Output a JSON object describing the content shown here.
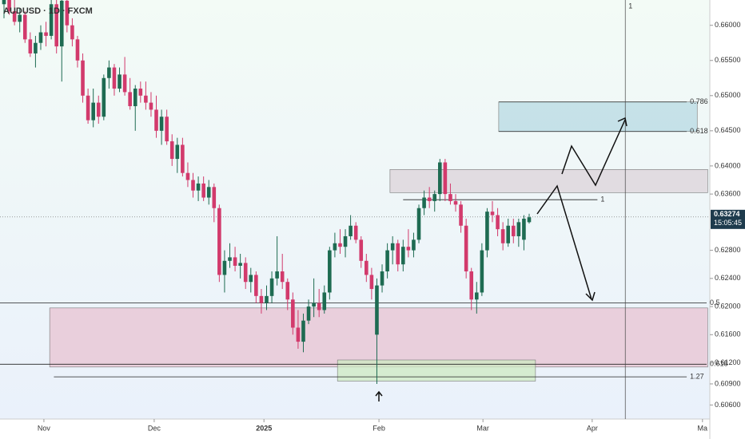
{
  "chart_data": {
    "type": "candlestick",
    "title": "AUDUSD · 1D · FXCM",
    "up_color": "#1e6b52",
    "down_color": "#d23a6c",
    "ohlc": [
      [
        0.663,
        0.665,
        0.661,
        0.664
      ],
      [
        0.664,
        0.6655,
        0.6615,
        0.662
      ],
      [
        0.662,
        0.664,
        0.66,
        0.6605
      ],
      [
        0.6605,
        0.6625,
        0.659,
        0.6615
      ],
      [
        0.6615,
        0.662,
        0.6575,
        0.658
      ],
      [
        0.658,
        0.659,
        0.6555,
        0.656
      ],
      [
        0.656,
        0.6585,
        0.654,
        0.6575
      ],
      [
        0.6575,
        0.66,
        0.6565,
        0.659
      ],
      [
        0.659,
        0.6605,
        0.657,
        0.6585
      ],
      [
        0.6585,
        0.664,
        0.658,
        0.663
      ],
      [
        0.663,
        0.664,
        0.656,
        0.657
      ],
      [
        0.657,
        0.664,
        0.652,
        0.6635
      ],
      [
        0.6635,
        0.664,
        0.659,
        0.66
      ],
      [
        0.66,
        0.661,
        0.657,
        0.658
      ],
      [
        0.658,
        0.6585,
        0.654,
        0.655
      ],
      [
        0.655,
        0.656,
        0.649,
        0.65
      ],
      [
        0.65,
        0.651,
        0.646,
        0.6465
      ],
      [
        0.6465,
        0.651,
        0.6455,
        0.649
      ],
      [
        0.649,
        0.65,
        0.646,
        0.647
      ],
      [
        0.647,
        0.653,
        0.6465,
        0.6525
      ],
      [
        0.6525,
        0.655,
        0.651,
        0.654
      ],
      [
        0.654,
        0.6545,
        0.65,
        0.651
      ],
      [
        0.651,
        0.654,
        0.6505,
        0.653
      ],
      [
        0.653,
        0.6555,
        0.65,
        0.6505
      ],
      [
        0.6505,
        0.6525,
        0.648,
        0.6485
      ],
      [
        0.6485,
        0.6515,
        0.645,
        0.651
      ],
      [
        0.651,
        0.652,
        0.649,
        0.65
      ],
      [
        0.65,
        0.652,
        0.648,
        0.649
      ],
      [
        0.649,
        0.6505,
        0.647,
        0.648
      ],
      [
        0.648,
        0.65,
        0.644,
        0.645
      ],
      [
        0.645,
        0.648,
        0.643,
        0.647
      ],
      [
        0.647,
        0.648,
        0.643,
        0.6435
      ],
      [
        0.6435,
        0.6445,
        0.64,
        0.641
      ],
      [
        0.641,
        0.644,
        0.639,
        0.643
      ],
      [
        0.643,
        0.644,
        0.6385,
        0.639
      ],
      [
        0.639,
        0.6405,
        0.637,
        0.638
      ],
      [
        0.638,
        0.639,
        0.6355,
        0.6365
      ],
      [
        0.6365,
        0.6385,
        0.635,
        0.6375
      ],
      [
        0.6375,
        0.6385,
        0.635,
        0.6355
      ],
      [
        0.6355,
        0.638,
        0.6345,
        0.637
      ],
      [
        0.637,
        0.6375,
        0.632,
        0.634
      ],
      [
        0.634,
        0.6345,
        0.6235,
        0.6245
      ],
      [
        0.6245,
        0.628,
        0.622,
        0.6265
      ],
      [
        0.6265,
        0.629,
        0.6255,
        0.627
      ],
      [
        0.627,
        0.6285,
        0.625,
        0.6258
      ],
      [
        0.6258,
        0.6275,
        0.624,
        0.6262
      ],
      [
        0.6262,
        0.627,
        0.6225,
        0.6235
      ],
      [
        0.6235,
        0.6255,
        0.622,
        0.6245
      ],
      [
        0.6245,
        0.625,
        0.6205,
        0.6215
      ],
      [
        0.6215,
        0.6225,
        0.619,
        0.6205
      ],
      [
        0.6205,
        0.623,
        0.6195,
        0.6215
      ],
      [
        0.6215,
        0.625,
        0.6205,
        0.624
      ],
      [
        0.624,
        0.63,
        0.623,
        0.625
      ],
      [
        0.625,
        0.6275,
        0.6225,
        0.6235
      ],
      [
        0.6235,
        0.624,
        0.6195,
        0.621
      ],
      [
        0.621,
        0.622,
        0.616,
        0.617
      ],
      [
        0.617,
        0.6195,
        0.614,
        0.615
      ],
      [
        0.615,
        0.619,
        0.6135,
        0.618
      ],
      [
        0.618,
        0.621,
        0.6175,
        0.62
      ],
      [
        0.62,
        0.624,
        0.6185,
        0.6205
      ],
      [
        0.6205,
        0.6225,
        0.6185,
        0.6195
      ],
      [
        0.6195,
        0.623,
        0.619,
        0.622
      ],
      [
        0.622,
        0.6285,
        0.621,
        0.628
      ],
      [
        0.628,
        0.6305,
        0.627,
        0.629
      ],
      [
        0.629,
        0.631,
        0.6275,
        0.6285
      ],
      [
        0.6285,
        0.631,
        0.627,
        0.63
      ],
      [
        0.63,
        0.633,
        0.6295,
        0.6315
      ],
      [
        0.6315,
        0.632,
        0.629,
        0.6295
      ],
      [
        0.6295,
        0.63,
        0.6255,
        0.6265
      ],
      [
        0.6265,
        0.6275,
        0.6235,
        0.6245
      ],
      [
        0.6245,
        0.6255,
        0.621,
        0.6225
      ],
      [
        0.616,
        0.624,
        0.609,
        0.623
      ],
      [
        0.623,
        0.626,
        0.622,
        0.625
      ],
      [
        0.625,
        0.629,
        0.624,
        0.628
      ],
      [
        0.628,
        0.63,
        0.626,
        0.629
      ],
      [
        0.629,
        0.6295,
        0.625,
        0.626
      ],
      [
        0.626,
        0.6295,
        0.625,
        0.6285
      ],
      [
        0.6285,
        0.631,
        0.627,
        0.628
      ],
      [
        0.628,
        0.6305,
        0.627,
        0.6295
      ],
      [
        0.6295,
        0.6345,
        0.629,
        0.634
      ],
      [
        0.634,
        0.6365,
        0.633,
        0.6355
      ],
      [
        0.6355,
        0.637,
        0.634,
        0.635
      ],
      [
        0.635,
        0.6365,
        0.6335,
        0.636
      ],
      [
        0.636,
        0.641,
        0.635,
        0.6405
      ],
      [
        0.6405,
        0.641,
        0.635,
        0.636
      ],
      [
        0.636,
        0.6375,
        0.6345,
        0.635
      ],
      [
        0.635,
        0.636,
        0.6335,
        0.6345
      ],
      [
        0.6345,
        0.635,
        0.6305,
        0.6315
      ],
      [
        0.6315,
        0.6325,
        0.624,
        0.625
      ],
      [
        0.625,
        0.6255,
        0.6195,
        0.621
      ],
      [
        0.621,
        0.6235,
        0.619,
        0.622
      ],
      [
        0.622,
        0.629,
        0.6215,
        0.628
      ],
      [
        0.628,
        0.634,
        0.627,
        0.6335
      ],
      [
        0.6335,
        0.635,
        0.632,
        0.633
      ],
      [
        0.633,
        0.634,
        0.63,
        0.631
      ],
      [
        0.631,
        0.632,
        0.628,
        0.629
      ],
      [
        0.629,
        0.6325,
        0.6285,
        0.6315
      ],
      [
        0.6315,
        0.6325,
        0.629,
        0.63
      ],
      [
        0.63,
        0.6325,
        0.6285,
        0.632
      ],
      [
        0.6295,
        0.633,
        0.628,
        0.6325
      ],
      [
        0.632,
        0.6332,
        0.6318,
        0.6327
      ]
    ],
    "xlim": [
      -0.76,
      134.4
    ],
    "xticks": [
      {
        "value": 7.6,
        "label": "Nov"
      },
      {
        "value": 28.6,
        "label": "Dec"
      },
      {
        "value": 49.5,
        "label": "2025"
      },
      {
        "value": 71.4,
        "label": "Feb"
      },
      {
        "value": 91.2,
        "label": "Mar"
      },
      {
        "value": 112,
        "label": "Apr"
      },
      {
        "value": 133,
        "label": "Ma"
      }
    ],
    "ylim": [
      0.604,
      0.6636
    ],
    "yticks": [
      {
        "value": 0.66,
        "label": "0.66000"
      },
      {
        "value": 0.655,
        "label": "0.65500"
      },
      {
        "value": 0.65,
        "label": "0.65000"
      },
      {
        "value": 0.645,
        "label": "0.64500"
      },
      {
        "value": 0.64,
        "label": "0.64000"
      },
      {
        "value": 0.636,
        "label": "0.63600"
      },
      {
        "value": 0.628,
        "label": "0.62800"
      },
      {
        "value": 0.624,
        "label": "0.62400"
      },
      {
        "value": 0.62,
        "label": "0.62000"
      },
      {
        "value": 0.616,
        "label": "0.61600"
      },
      {
        "value": 0.612,
        "label": "0.61200"
      },
      {
        "value": 0.609,
        "label": "0.60900"
      },
      {
        "value": 0.606,
        "label": "0.60600"
      }
    ],
    "zones": [
      {
        "y": [
          0.6491,
          0.6449
        ],
        "x": [
          94.2,
          132
        ],
        "color": "#b7d9e3"
      },
      {
        "y": [
          0.6395,
          0.6362
        ],
        "x": [
          73.5,
          134
        ],
        "color": "#dcd3da"
      },
      {
        "y": [
          0.6198,
          0.6114
        ],
        "x": [
          8.7,
          134
        ],
        "color": "#e8c3d2"
      },
      {
        "y": [
          0.6124,
          0.6094
        ],
        "x": [
          63.5,
          101.2
        ],
        "color": "#cdeac2"
      }
    ],
    "levels": [
      {
        "value": 0.6491,
        "x": [
          94.2,
          130
        ],
        "label": "0.786"
      },
      {
        "value": 0.6449,
        "x": [
          94.2,
          130
        ],
        "label": "0.618"
      },
      {
        "value": 0.6352,
        "x": [
          76,
          113
        ],
        "label": "1"
      },
      {
        "value": 0.6205,
        "x": [
          -0.76,
          134.4
        ],
        "label": "0.5"
      },
      {
        "value": 0.6118,
        "x": [
          -0.76,
          134.4
        ],
        "label": "0.618"
      },
      {
        "value": 0.61,
        "x": [
          9.5,
          130
        ],
        "label": "1.27"
      }
    ],
    "vline": {
      "value": 118.3,
      "label": "1"
    },
    "last_price": {
      "value": 0.63274,
      "label": "0.63274",
      "countdown": "15:05:45"
    }
  }
}
